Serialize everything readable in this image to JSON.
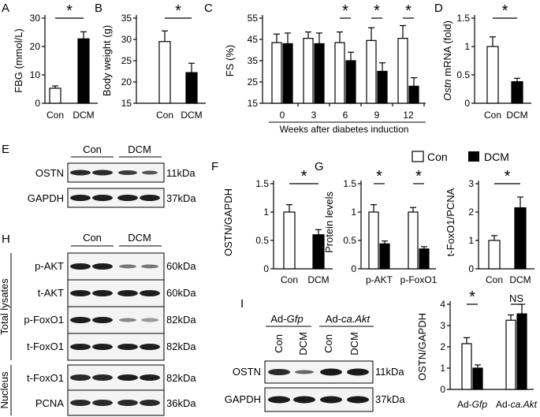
{
  "panel_letters": {
    "A": "A",
    "B": "B",
    "C": "C",
    "D": "D",
    "E": "E",
    "F": "F",
    "G": "G",
    "H": "H",
    "I": "I"
  },
  "legend": {
    "con": "Con",
    "dcm": "DCM"
  },
  "blots": {
    "E": {
      "groups": [
        "Con",
        "DCM"
      ],
      "rows": [
        {
          "label": "OSTN",
          "kda": "11kDa"
        },
        {
          "label": "GAPDH",
          "kda": "37kDa"
        }
      ]
    },
    "H": {
      "groups": [
        "Con",
        "DCM"
      ],
      "section_labels": {
        "total": "Total lysates",
        "nucleus": "Nucleus"
      },
      "rows": [
        {
          "label": "p-AKT",
          "kda": "60kDa"
        },
        {
          "label": "t-AKT",
          "kda": "60kDa"
        },
        {
          "label": "p-FoxO1",
          "kda": "82kDa"
        },
        {
          "label": "t-FoxO1",
          "kda": "82kDa"
        },
        {
          "label": "t-FoxO1",
          "kda": "82kDa"
        },
        {
          "label": "PCNA",
          "kda": "36kDa"
        }
      ]
    },
    "I": {
      "groups": [
        "Ad-",
        "Gfp",
        "Ad-",
        "ca.Akt"
      ],
      "lanes": [
        "Con",
        "DCM",
        "Con",
        "DCM"
      ],
      "rows": [
        {
          "label": "OSTN",
          "kda": "11kDa"
        },
        {
          "label": "GAPDH",
          "kda": "37kDa"
        }
      ]
    }
  },
  "chart_data": [
    {
      "panel": "A",
      "type": "bar",
      "categories": [
        "Con",
        "DCM"
      ],
      "values": [
        5.3,
        22.7
      ],
      "errors": [
        0.8,
        2.5
      ],
      "ylabel": "FBG (mmol/L)",
      "yticks": [
        "0",
        "10",
        "20",
        "30"
      ],
      "ylim": [
        0,
        30
      ],
      "significance": "*"
    },
    {
      "panel": "B",
      "type": "bar",
      "categories": [
        "Con",
        "DCM"
      ],
      "values": [
        29.5,
        22.2
      ],
      "errors": [
        2.5,
        2.2
      ],
      "ylabel": "Body weight (g)",
      "yticks": [
        "15",
        "20",
        "25",
        "30",
        "35"
      ],
      "ylim": [
        15,
        35
      ],
      "significance": "*"
    },
    {
      "panel": "C",
      "type": "bar",
      "categories": [
        "0",
        "3",
        "6",
        "9",
        "12"
      ],
      "series": [
        {
          "values": [
            43.5,
            45.5,
            43.5,
            44.5,
            45.5
          ],
          "errors": [
            4,
            3,
            5,
            6,
            6
          ]
        },
        {
          "values": [
            43.0,
            43.0,
            35.0,
            30.0,
            23.0
          ],
          "errors": [
            5,
            5,
            4,
            4,
            4
          ]
        }
      ],
      "ylabel": "FS (%)",
      "xlabel": "Weeks after diabetes induction",
      "yticks": [
        "15",
        "25",
        "35",
        "45",
        "55"
      ],
      "ylim": [
        15,
        55
      ],
      "significance_at": [
        "6",
        "9",
        "12"
      ],
      "significance": "*"
    },
    {
      "panel": "D",
      "type": "bar",
      "categories": [
        "Con",
        "DCM"
      ],
      "values": [
        1.0,
        0.38
      ],
      "errors": [
        0.17,
        0.06
      ],
      "ylabel_italic": "Ostn",
      "ylabel_rest": " mRNA (fold)",
      "yticks": [
        "0",
        "0.5",
        "1",
        "1.5"
      ],
      "ylim": [
        0,
        1.5
      ],
      "significance": "*"
    },
    {
      "panel": "F",
      "type": "bar",
      "categories": [
        "Con",
        "DCM"
      ],
      "values": [
        1.0,
        0.6
      ],
      "errors": [
        0.13,
        0.09
      ],
      "ylabel": "OSTN/GAPDH",
      "yticks": [
        "0",
        "0.5",
        "1",
        "1.5"
      ],
      "ylim": [
        0,
        1.5
      ],
      "significance": "*"
    },
    {
      "panel": "G",
      "type": "bar",
      "categories": [
        "p-AKT",
        "p-FoxO1"
      ],
      "series": [
        {
          "values": [
            1.0,
            1.0
          ],
          "errors": [
            0.13,
            0.08
          ]
        },
        {
          "values": [
            0.44,
            0.35
          ],
          "errors": [
            0.05,
            0.04
          ]
        }
      ],
      "ylabel": "Protein levels",
      "yticks": [
        "0",
        "0.5",
        "1",
        "1.5"
      ],
      "ylim": [
        0,
        1.5
      ],
      "significance": "*"
    },
    {
      "panel": "G2",
      "type": "bar",
      "categories": [
        "Con",
        "DCM"
      ],
      "values": [
        1.0,
        2.15
      ],
      "errors": [
        0.17,
        0.38
      ],
      "ylabel": "t-FoxO1/PCNA",
      "yticks": [
        "0",
        "1",
        "2",
        "3"
      ],
      "ylim": [
        0,
        3
      ],
      "significance": "*"
    },
    {
      "panel": "I",
      "type": "bar",
      "categories": [
        "Ad-Gfp",
        "Ad-ca.Akt"
      ],
      "category_parts": [
        [
          "Ad-",
          "Gfp"
        ],
        [
          "Ad-",
          "ca.Akt"
        ]
      ],
      "series": [
        {
          "values": [
            2.15,
            3.25
          ],
          "errors": [
            0.28,
            0.25
          ]
        },
        {
          "values": [
            1.0,
            3.55
          ],
          "errors": [
            0.15,
            0.45
          ]
        }
      ],
      "ylabel": "OSTN/GAPDH",
      "yticks": [
        "0",
        "1",
        "2",
        "3",
        "4"
      ],
      "ylim": [
        0,
        4
      ],
      "significance_labels": [
        "*",
        "NS"
      ]
    }
  ]
}
